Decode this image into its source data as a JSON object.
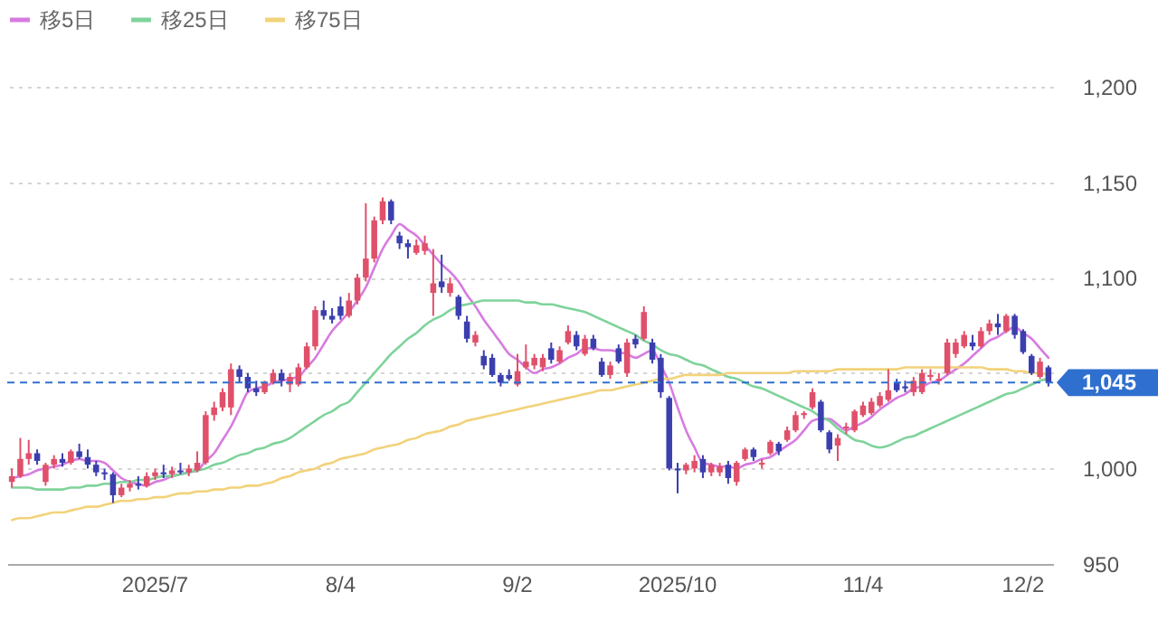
{
  "chart_data": {
    "type": "candlestick",
    "categories": [
      null,
      null,
      null,
      null,
      null,
      null,
      null,
      null,
      null,
      null,
      null,
      null,
      null,
      null,
      null,
      null,
      null,
      "2025/7",
      null,
      null,
      null,
      null,
      null,
      null,
      null,
      null,
      null,
      null,
      null,
      null,
      null,
      null,
      null,
      null,
      null,
      null,
      null,
      null,
      null,
      "8/4",
      null,
      null,
      null,
      null,
      null,
      null,
      null,
      null,
      null,
      null,
      null,
      null,
      null,
      null,
      null,
      null,
      null,
      null,
      null,
      null,
      "9/2",
      null,
      null,
      null,
      null,
      null,
      null,
      null,
      null,
      null,
      null,
      null,
      null,
      null,
      null,
      null,
      null,
      null,
      null,
      "2025/10",
      null,
      null,
      null,
      null,
      null,
      null,
      null,
      null,
      null,
      null,
      null,
      null,
      null,
      null,
      null,
      null,
      null,
      null,
      null,
      null,
      null,
      "11/4",
      null,
      null,
      null,
      null,
      null,
      null,
      null,
      null,
      null,
      null,
      null,
      null,
      null,
      null,
      null,
      null,
      null,
      null,
      "12/2",
      null,
      null,
      null
    ],
    "ohlc": [
      [
        993,
        1000,
        990,
        996
      ],
      [
        996,
        1016,
        995,
        1005
      ],
      [
        1005,
        1015,
        1002,
        1008
      ],
      [
        1008,
        1010,
        1002,
        1004
      ],
      [
        993,
        1003,
        991,
        1002
      ],
      [
        1002,
        1007,
        1000,
        1005
      ],
      [
        1005,
        1008,
        1001,
        1003
      ],
      [
        1003,
        1010,
        1002,
        1009
      ],
      [
        1009,
        1013,
        1005,
        1006
      ],
      [
        1006,
        1010,
        1000,
        1002
      ],
      [
        1002,
        1004,
        996,
        998
      ],
      [
        998,
        1000,
        994,
        997
      ],
      [
        997,
        998,
        982,
        986
      ],
      [
        986,
        992,
        985,
        990
      ],
      [
        990,
        994,
        988,
        992
      ],
      [
        992,
        996,
        989,
        991
      ],
      [
        991,
        998,
        990,
        996
      ],
      [
        996,
        1000,
        994,
        998
      ],
      [
        998,
        1002,
        995,
        997
      ],
      [
        997,
        1001,
        995,
        999
      ],
      [
        999,
        1003,
        997,
        998
      ],
      [
        998,
        1002,
        996,
        1000
      ],
      [
        999,
        1009,
        998,
        1003
      ],
      [
        1003,
        1030,
        1002,
        1028
      ],
      [
        1028,
        1035,
        1025,
        1032
      ],
      [
        1032,
        1042,
        1030,
        1040
      ],
      [
        1032,
        1055,
        1028,
        1052
      ],
      [
        1052,
        1054,
        1045,
        1048
      ],
      [
        1048,
        1050,
        1040,
        1042
      ],
      [
        1042,
        1046,
        1038,
        1040
      ],
      [
        1040,
        1046,
        1039,
        1045
      ],
      [
        1045,
        1052,
        1044,
        1050
      ],
      [
        1050,
        1052,
        1043,
        1046
      ],
      [
        1044,
        1050,
        1040,
        1048
      ],
      [
        1044,
        1055,
        1043,
        1053
      ],
      [
        1053,
        1066,
        1052,
        1064
      ],
      [
        1064,
        1085,
        1062,
        1083
      ],
      [
        1083,
        1088,
        1078,
        1080
      ],
      [
        1080,
        1084,
        1076,
        1078
      ],
      [
        1085,
        1090,
        1078,
        1080
      ],
      [
        1080,
        1092,
        1079,
        1088
      ],
      [
        1088,
        1102,
        1086,
        1100
      ],
      [
        1100,
        1139,
        1098,
        1110
      ],
      [
        1110,
        1132,
        1108,
        1130
      ],
      [
        1130,
        1142,
        1128,
        1140
      ],
      [
        1140,
        1141,
        1128,
        1130
      ],
      [
        1122,
        1124,
        1115,
        1118
      ],
      [
        1118,
        1120,
        1110,
        1116
      ],
      [
        1113,
        1120,
        1112,
        1117
      ],
      [
        1114,
        1122,
        1112,
        1118
      ],
      [
        1092,
        1115,
        1080,
        1097
      ],
      [
        1098,
        1112,
        1092,
        1095
      ],
      [
        1092,
        1100,
        1090,
        1097
      ],
      [
        1090,
        1091,
        1078,
        1080
      ],
      [
        1077,
        1080,
        1066,
        1068
      ],
      [
        1066,
        1072,
        1064,
        1070
      ],
      [
        1059,
        1062,
        1052,
        1054
      ],
      [
        1058,
        1060,
        1048,
        1049
      ],
      [
        1049,
        1050,
        1043,
        1045
      ],
      [
        1049,
        1052,
        1046,
        1047
      ],
      [
        1044,
        1060,
        1043,
        1051
      ],
      [
        1053,
        1065,
        1052,
        1056
      ],
      [
        1054,
        1060,
        1052,
        1058
      ],
      [
        1053,
        1060,
        1051,
        1058
      ],
      [
        1063,
        1066,
        1055,
        1057
      ],
      [
        1056,
        1064,
        1055,
        1062
      ],
      [
        1066,
        1075,
        1065,
        1072
      ],
      [
        1070,
        1072,
        1062,
        1064
      ],
      [
        1060,
        1070,
        1059,
        1068
      ],
      [
        1068,
        1070,
        1062,
        1063
      ],
      [
        1056,
        1058,
        1048,
        1049
      ],
      [
        1049,
        1056,
        1047,
        1054
      ],
      [
        1063,
        1065,
        1055,
        1056
      ],
      [
        1050,
        1068,
        1048,
        1066
      ],
      [
        1068,
        1070,
        1063,
        1065
      ],
      [
        1068,
        1085,
        1067,
        1082
      ],
      [
        1066,
        1068,
        1055,
        1057
      ],
      [
        1058,
        1060,
        1037,
        1040
      ],
      [
        1037,
        1038,
        999,
        1000
      ],
      [
        1000,
        1003,
        987,
        999
      ],
      [
        999,
        1003,
        997,
        1002
      ],
      [
        1000,
        1007,
        998,
        1004
      ],
      [
        1005,
        1007,
        995,
        998
      ],
      [
        998,
        1003,
        996,
        1002
      ],
      [
        998,
        1003,
        996,
        1001
      ],
      [
        1002,
        1004,
        992,
        995
      ],
      [
        993,
        1004,
        991,
        1003
      ],
      [
        1005,
        1011,
        1004,
        1010
      ],
      [
        1010,
        1011,
        1004,
        1006
      ],
      [
        1002,
        1005,
        1000,
        1003
      ],
      [
        1008,
        1015,
        1007,
        1014
      ],
      [
        1013,
        1014,
        1007,
        1009
      ],
      [
        1015,
        1022,
        1014,
        1020
      ],
      [
        1020,
        1030,
        1019,
        1028
      ],
      [
        1028,
        1030,
        1026,
        1029
      ],
      [
        1032,
        1042,
        1031,
        1040
      ],
      [
        1035,
        1036,
        1019,
        1020
      ],
      [
        1019,
        1020,
        1008,
        1010
      ],
      [
        1012,
        1018,
        1004,
        1016
      ],
      [
        1021,
        1024,
        1018,
        1022
      ],
      [
        1020,
        1031,
        1019,
        1030
      ],
      [
        1028,
        1035,
        1027,
        1033
      ],
      [
        1029,
        1037,
        1028,
        1035
      ],
      [
        1033,
        1040,
        1032,
        1038
      ],
      [
        1036,
        1052,
        1035,
        1041
      ],
      [
        1045,
        1047,
        1040,
        1041
      ],
      [
        1043,
        1046,
        1040,
        1042
      ],
      [
        1040,
        1048,
        1038,
        1046
      ],
      [
        1040,
        1052,
        1039,
        1050
      ],
      [
        1048,
        1052,
        1046,
        1049
      ],
      [
        1046,
        1050,
        1044,
        1047
      ],
      [
        1050,
        1068,
        1049,
        1066
      ],
      [
        1060,
        1068,
        1058,
        1066
      ],
      [
        1064,
        1072,
        1063,
        1070
      ],
      [
        1066,
        1070,
        1062,
        1064
      ],
      [
        1064,
        1074,
        1063,
        1072
      ],
      [
        1072,
        1078,
        1070,
        1076
      ],
      [
        1076,
        1081,
        1070,
        1074
      ],
      [
        1072,
        1081,
        1071,
        1080
      ],
      [
        1080,
        1081,
        1068,
        1070
      ],
      [
        1072,
        1073,
        1060,
        1061
      ],
      [
        1059,
        1060,
        1049,
        1050
      ],
      [
        1048,
        1058,
        1047,
        1056
      ],
      [
        1053,
        1054,
        1043,
        1045
      ]
    ],
    "series": [
      {
        "name": "移5日",
        "type": "line",
        "color": "#d77be0",
        "values": [
          995,
          996,
          997,
          999,
          1000,
          1001,
          1002,
          1004,
          1005,
          1004,
          1004,
          1003,
          999,
          995,
          993,
          992,
          991,
          993,
          994,
          996,
          997,
          998,
          999,
          1004,
          1008,
          1015,
          1022,
          1031,
          1040,
          1042,
          1043,
          1045,
          1046,
          1047,
          1048,
          1053,
          1058,
          1065,
          1072,
          1077,
          1082,
          1088,
          1095,
          1105,
          1115,
          1122,
          1128,
          1125,
          1122,
          1117,
          1112,
          1107,
          1103,
          1098,
          1091,
          1085,
          1078,
          1072,
          1066,
          1060,
          1057,
          1053,
          1050,
          1052,
          1053,
          1055,
          1058,
          1060,
          1063,
          1063,
          1062,
          1062,
          1061,
          1060,
          1058,
          1060,
          1062,
          1054,
          1045,
          1032,
          1020,
          1011,
          1003,
          1002,
          1001,
          1001,
          1000,
          1002,
          1003,
          1005,
          1006,
          1009,
          1012,
          1015,
          1020,
          1025,
          1026,
          1026,
          1023,
          1020,
          1022,
          1024,
          1027,
          1031,
          1034,
          1037,
          1039,
          1042,
          1043,
          1045,
          1046,
          1049,
          1052,
          1055,
          1059,
          1063,
          1067,
          1069,
          1072,
          1074,
          1071,
          1068,
          1063,
          1058
        ]
      },
      {
        "name": "移25日",
        "type": "line",
        "color": "#7fd39a",
        "values": [
          990,
          990,
          990,
          989,
          989,
          989,
          989,
          990,
          990,
          991,
          991,
          992,
          992,
          993,
          993,
          994,
          994,
          995,
          996,
          996,
          997,
          998,
          999,
          1000,
          1002,
          1003,
          1005,
          1007,
          1008,
          1010,
          1011,
          1013,
          1014,
          1016,
          1019,
          1022,
          1025,
          1028,
          1030,
          1033,
          1035,
          1040,
          1045,
          1050,
          1055,
          1060,
          1064,
          1068,
          1071,
          1075,
          1078,
          1080,
          1083,
          1085,
          1086,
          1087,
          1088,
          1088,
          1088,
          1088,
          1088,
          1087,
          1087,
          1086,
          1086,
          1085,
          1084,
          1083,
          1082,
          1080,
          1078,
          1076,
          1074,
          1072,
          1070,
          1067,
          1065,
          1062,
          1060,
          1059,
          1057,
          1055,
          1054,
          1052,
          1050,
          1048,
          1047,
          1045,
          1043,
          1042,
          1040,
          1038,
          1036,
          1034,
          1032,
          1030,
          1027,
          1025,
          1021,
          1018,
          1015,
          1014,
          1012,
          1011,
          1012,
          1014,
          1016,
          1017,
          1019,
          1021,
          1023,
          1025,
          1027,
          1029,
          1031,
          1033,
          1035,
          1037,
          1039,
          1040,
          1042,
          1044,
          1046,
          1047
        ]
      },
      {
        "name": "移75日",
        "type": "line",
        "color": "#f2d27a",
        "values": [
          973,
          974,
          974,
          975,
          976,
          977,
          977,
          978,
          979,
          980,
          980,
          981,
          982,
          983,
          983,
          984,
          984,
          985,
          985,
          986,
          987,
          987,
          988,
          988,
          989,
          989,
          990,
          990,
          991,
          991,
          992,
          993,
          995,
          996,
          998,
          999,
          1000,
          1002,
          1003,
          1005,
          1006,
          1007,
          1008,
          1010,
          1011,
          1012,
          1013,
          1015,
          1016,
          1018,
          1019,
          1020,
          1022,
          1023,
          1025,
          1026,
          1027,
          1028,
          1029,
          1030,
          1031,
          1032,
          1033,
          1034,
          1035,
          1036,
          1037,
          1038,
          1039,
          1040,
          1041,
          1041,
          1042,
          1043,
          1044,
          1045,
          1046,
          1047,
          1047,
          1048,
          1049,
          1049,
          1049,
          1049,
          1049,
          1050,
          1050,
          1050,
          1050,
          1050,
          1050,
          1050,
          1050,
          1051,
          1051,
          1051,
          1051,
          1051,
          1052,
          1052,
          1052,
          1052,
          1052,
          1052,
          1052,
          1052,
          1053,
          1053,
          1053,
          1053,
          1053,
          1053,
          1053,
          1053,
          1053,
          1053,
          1052,
          1052,
          1052,
          1051,
          1051,
          1050,
          1050,
          1049
        ]
      }
    ],
    "ylim": [
      950,
      1200
    ],
    "yticks": [
      {
        "value": 950,
        "label": "950"
      },
      {
        "value": 1000,
        "label": "1,000"
      },
      {
        "value": 1050,
        "label": null
      },
      {
        "value": 1100,
        "label": "1,100"
      },
      {
        "value": 1150,
        "label": "1,150"
      },
      {
        "value": 1200,
        "label": "1,200"
      }
    ],
    "ref_lines": [
      {
        "axis": "y",
        "value": 1045,
        "label": "1,045",
        "color": "#2f6fcf",
        "line_style": "dashed"
      }
    ],
    "grid": "y",
    "legend": "top left"
  }
}
